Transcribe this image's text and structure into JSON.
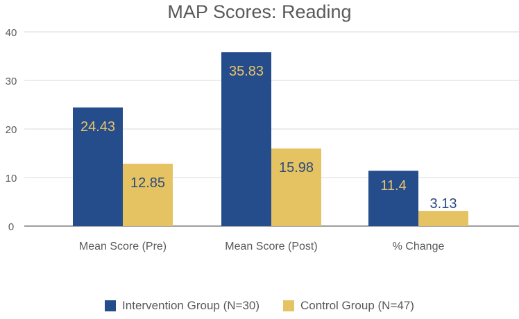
{
  "chart_data": {
    "type": "bar",
    "title": "MAP Scores: Reading",
    "xlabel": "",
    "ylabel": "",
    "categories": [
      "Mean Score (Pre)",
      "Mean Score (Post)",
      "% Change"
    ],
    "series": [
      {
        "name": "Intervention Group (N=30)",
        "values": [
          24.43,
          35.83,
          11.4
        ],
        "labels": [
          "24.43",
          "35.83",
          "11.4"
        ],
        "color": "#254d8c",
        "label_color": "#e9c46a"
      },
      {
        "name": "Control Group (N=47)",
        "values": [
          12.85,
          15.98,
          3.13
        ],
        "labels": [
          "12.85",
          "15.98",
          "3.13"
        ],
        "color": "#e6c362",
        "label_color": "#2b4a7e"
      }
    ],
    "label_color_overrides": {
      "0": [
        "#e9c46a",
        "#2b4a7e"
      ],
      "1": [
        "#e9c46a",
        "#2b4a7e"
      ],
      "2": [
        "#e9c46a",
        "#2b4a7e"
      ]
    },
    "ylim": [
      0,
      40
    ],
    "yticks": [
      0,
      10,
      20,
      30,
      40
    ],
    "grid": true,
    "legend_position": "bottom"
  }
}
